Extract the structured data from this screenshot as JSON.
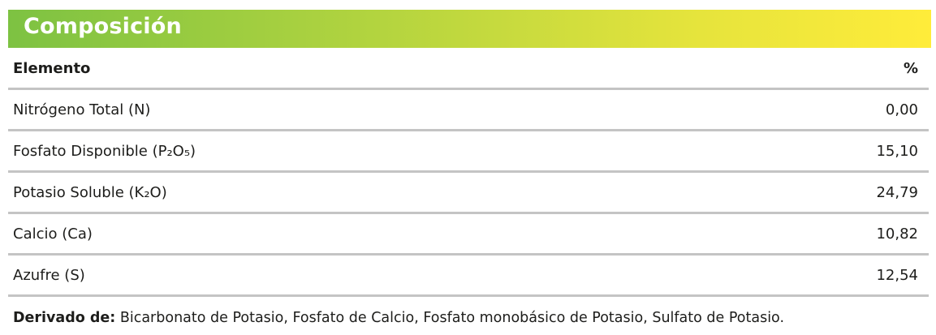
{
  "title": "Composición",
  "colors": {
    "gradient_start": "#7dc242",
    "gradient_end": "#ffec3a",
    "divider": "#c4c4c4"
  },
  "table": {
    "headers": {
      "element": "Elemento",
      "percent": "%"
    },
    "rows": [
      {
        "element": "Nitrógeno Total (N)",
        "percent": "0,00"
      },
      {
        "element": "Fosfato Disponible (P₂O₅)",
        "percent": "15,10"
      },
      {
        "element": "Potasio Soluble (K₂O)",
        "percent": "24,79"
      },
      {
        "element": "Calcio (Ca)",
        "percent": "10,82"
      },
      {
        "element": "Azufre (S)",
        "percent": "12,54"
      }
    ]
  },
  "footer": {
    "label": "Derivado de:",
    "text": " Bicarbonato de Potasio, Fosfato de Calcio, Fosfato monobásico de Potasio, Sulfato de Potasio."
  }
}
